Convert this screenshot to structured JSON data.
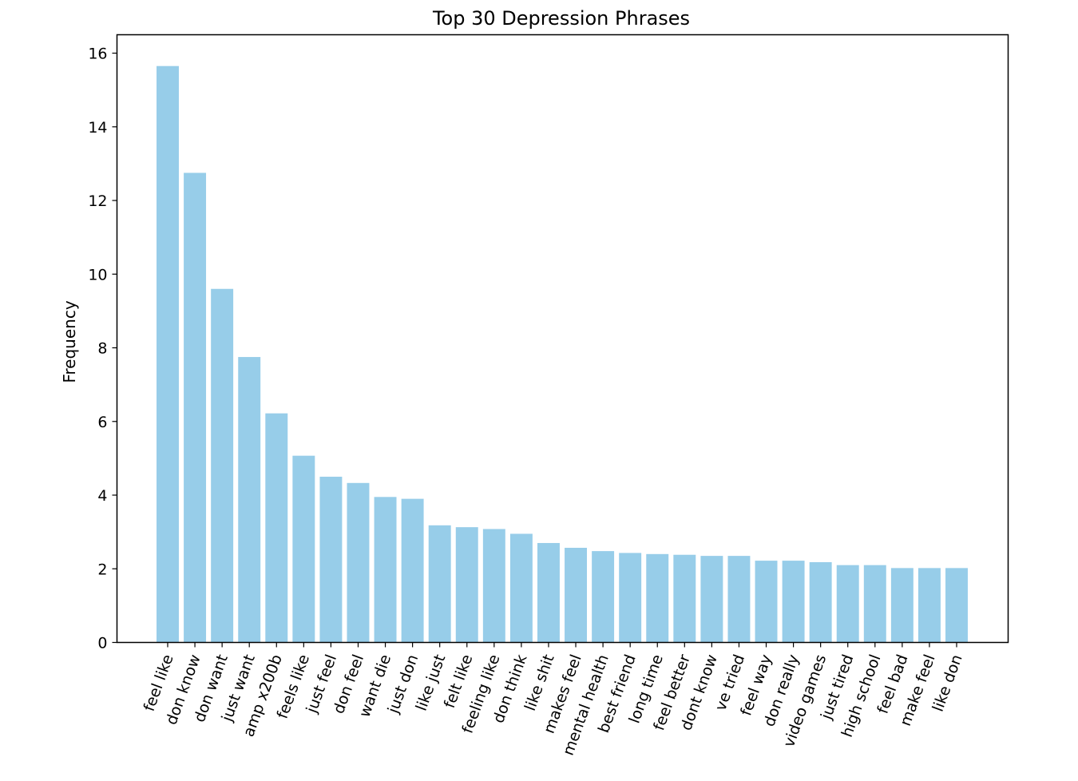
{
  "chart_data": {
    "type": "bar",
    "title": "Top 30 Depression Phrases",
    "xlabel": "",
    "ylabel": "Frequency",
    "ylim": [
      0,
      16.5
    ],
    "yticks": [
      "0",
      "2",
      "4",
      "6",
      "8",
      "10",
      "12",
      "14",
      "16"
    ],
    "grid": false,
    "bar_color": "#97cde9",
    "categories": [
      "feel like",
      "don know",
      "don want",
      "just want",
      "amp x200b",
      "feels like",
      "just feel",
      "don feel",
      "want die",
      "just don",
      "like just",
      "felt like",
      "feeling like",
      "don think",
      "like shit",
      "makes feel",
      "mental health",
      "best friend",
      "long time",
      "feel better",
      "dont know",
      "ve tried",
      "feel way",
      "don really",
      "video games",
      "just tired",
      "high school",
      "feel bad",
      "make feel",
      "like don"
    ],
    "values": [
      15.65,
      12.75,
      9.6,
      7.75,
      6.22,
      5.07,
      4.5,
      4.33,
      3.95,
      3.9,
      3.18,
      3.13,
      3.08,
      2.95,
      2.7,
      2.57,
      2.48,
      2.43,
      2.4,
      2.38,
      2.35,
      2.35,
      2.22,
      2.22,
      2.18,
      2.1,
      2.1,
      2.02,
      2.02,
      2.02
    ]
  }
}
